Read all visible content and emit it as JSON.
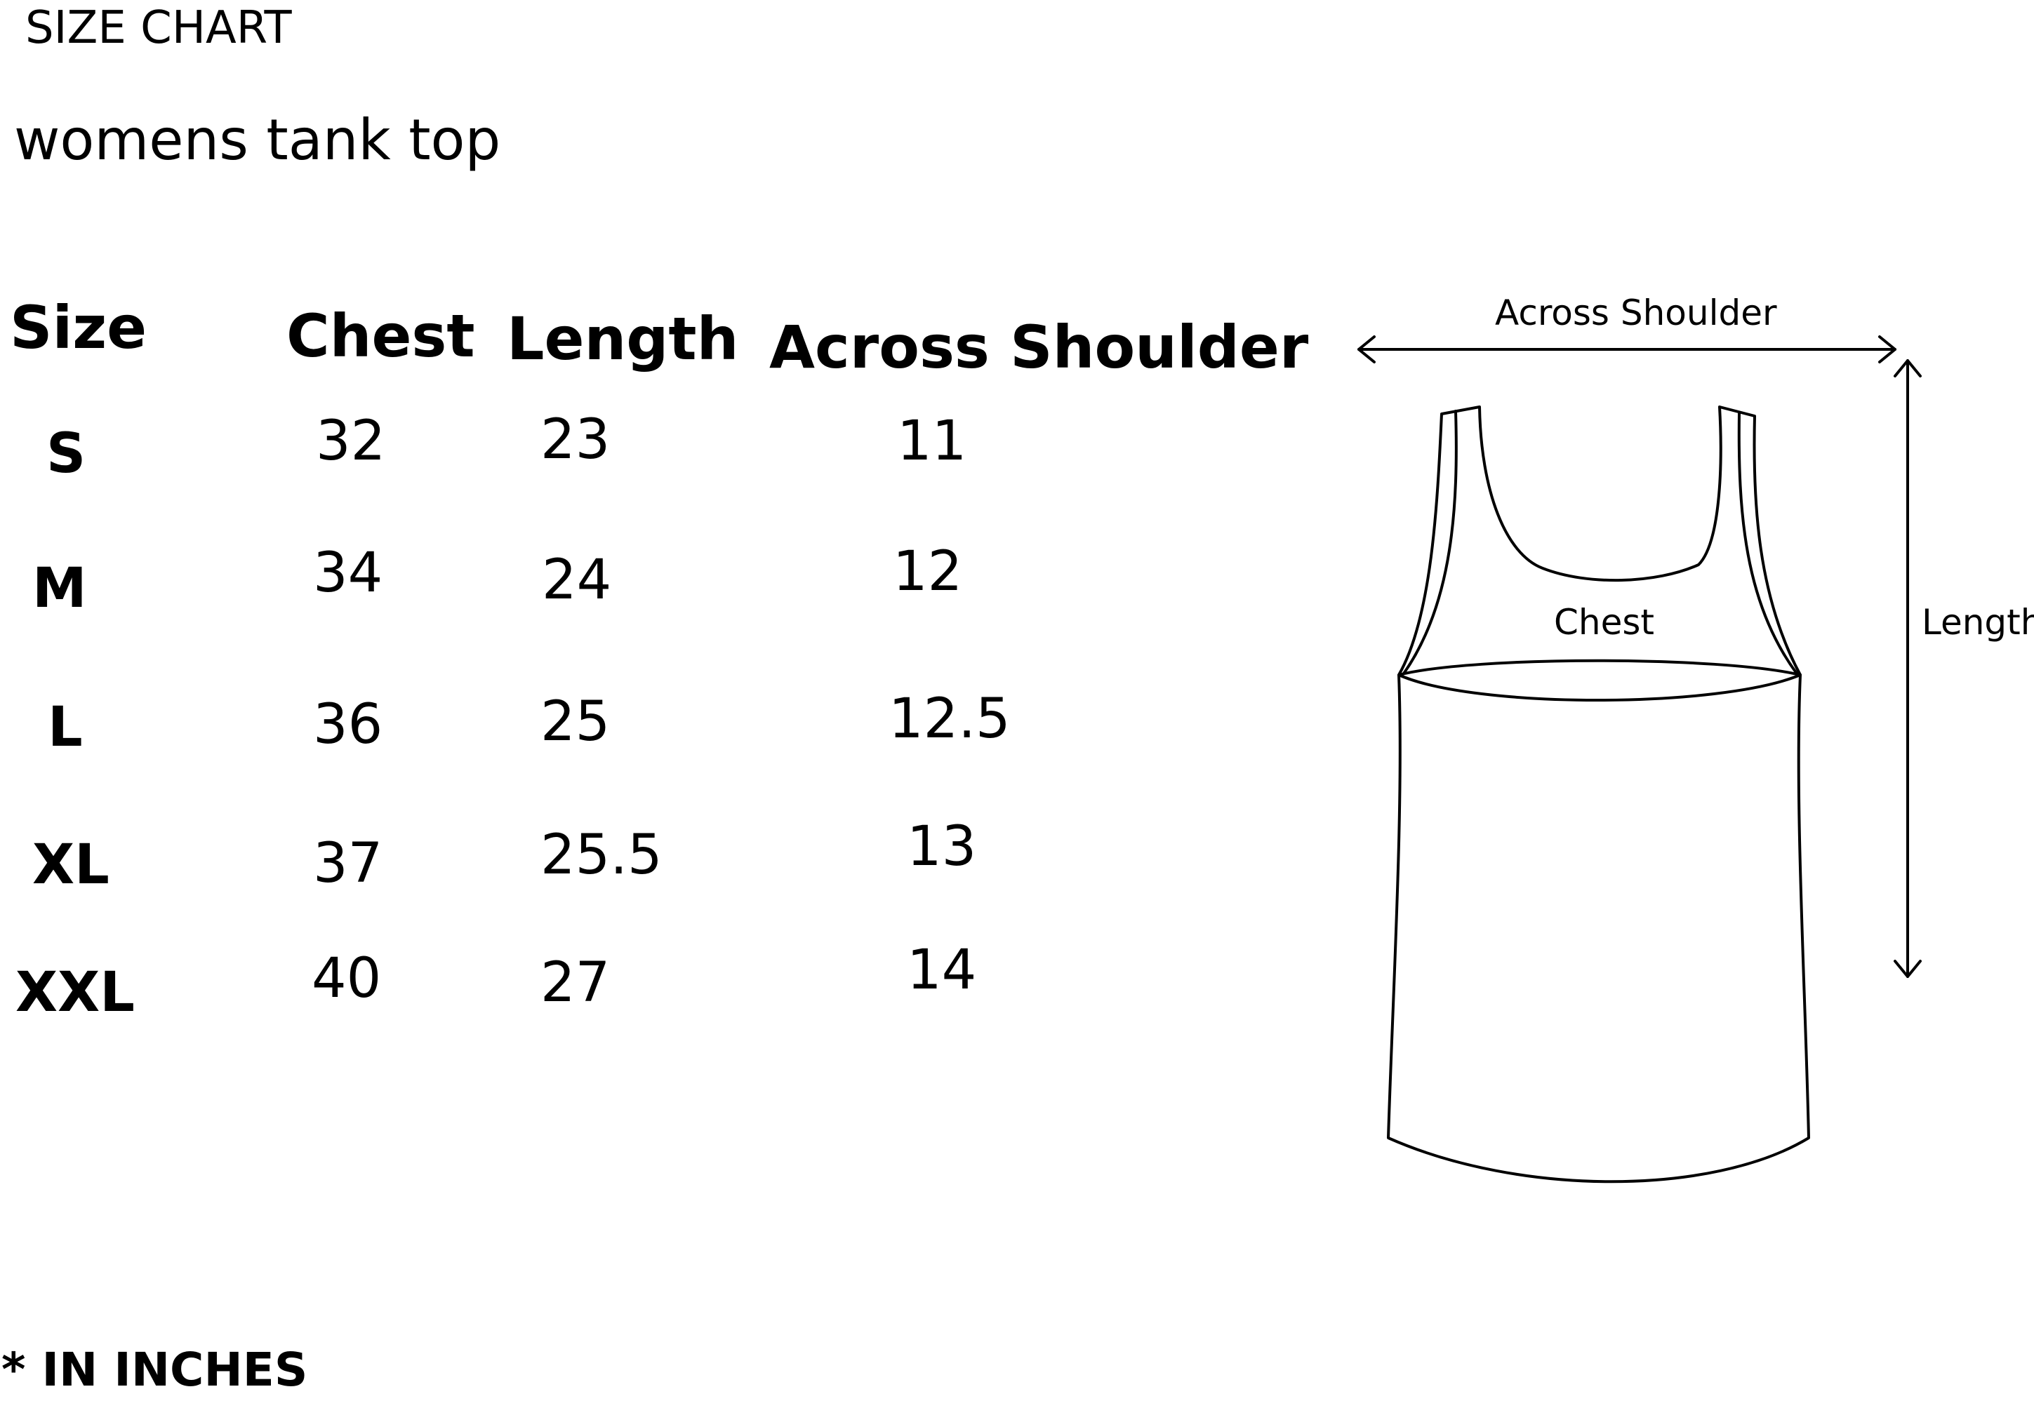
{
  "document": {
    "title": "SIZE CHART",
    "subtitle": "womens tank top",
    "footnote": "* IN INCHES"
  },
  "table": {
    "headers": [
      "Size",
      "Chest",
      "Length",
      "Across Shoulder"
    ],
    "rows": [
      {
        "size": "S",
        "chest": "32",
        "length": "23",
        "across_shoulder": "11"
      },
      {
        "size": "M",
        "chest": "34",
        "length": "24",
        "across_shoulder": "12"
      },
      {
        "size": "L",
        "chest": "36",
        "length": "25",
        "across_shoulder": "12.5"
      },
      {
        "size": "XL",
        "chest": "37",
        "length": "25.5",
        "across_shoulder": "13"
      },
      {
        "size": "XXL",
        "chest": "40",
        "length": "27",
        "across_shoulder": "14"
      }
    ]
  },
  "diagram": {
    "labels": {
      "across_shoulder": "Across Shoulder",
      "chest": "Chest",
      "length": "Length"
    },
    "stroke_color": "#000000"
  }
}
